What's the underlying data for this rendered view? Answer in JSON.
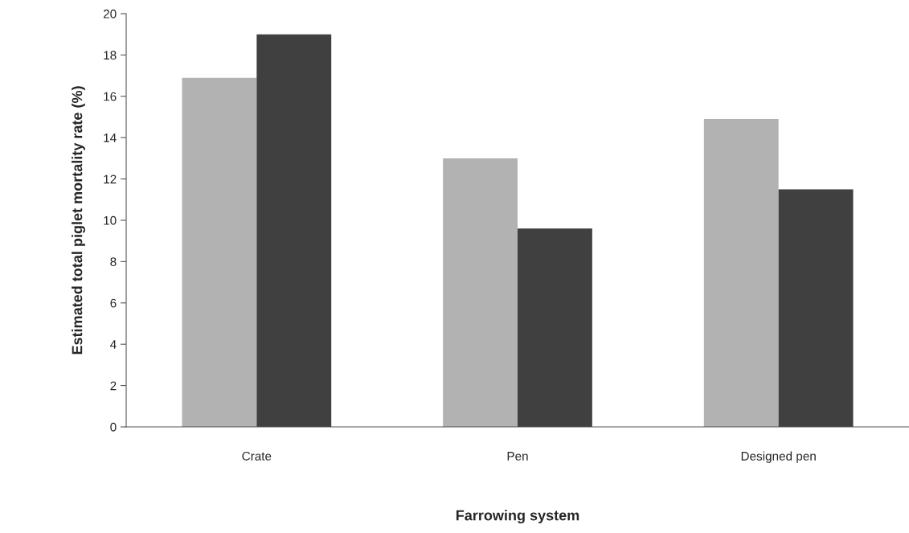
{
  "chart_data": {
    "type": "bar",
    "xlabel": "Farrowing system",
    "ylabel": "Estimated total piglet mortality rate (%)",
    "categories": [
      "Crate",
      "Pen",
      "Designed pen"
    ],
    "series": [
      {
        "color": "#b2b2b2",
        "values": [
          16.9,
          13.0,
          14.9
        ]
      },
      {
        "color": "#404040",
        "values": [
          19.0,
          9.6,
          11.5
        ]
      }
    ],
    "ylim": [
      0,
      20
    ],
    "yticks": [
      0,
      2,
      4,
      6,
      8,
      10,
      12,
      14,
      16,
      18,
      20
    ],
    "grid": false
  }
}
